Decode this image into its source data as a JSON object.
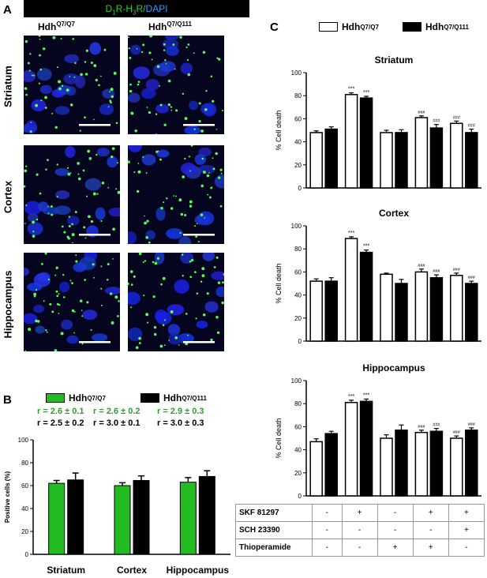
{
  "panelA": {
    "letter": "A",
    "stain_prefix": "D",
    "stain_sub1": "1",
    "stain_mid": "R-H",
    "stain_sub2": "3",
    "stain_suffix": "R/",
    "stain_dapi": "DAPI",
    "col1_base": "Hdh",
    "col1_sup": "Q7/Q7",
    "col2_base": "Hdh",
    "col2_sup": "Q7/Q111",
    "rows": [
      "Striatum",
      "Cortex",
      "Hippocampus"
    ]
  },
  "panelB": {
    "letter": "B",
    "legend": [
      {
        "base": "Hdh",
        "sup": "Q7/Q7",
        "color": "#22bb22"
      },
      {
        "base": "Hdh",
        "sup": "Q7/Q111",
        "color": "#000000"
      }
    ],
    "stats_green": [
      "r = 2.6 ± 0.1",
      "r = 2.6 ± 0.2",
      "r = 2.9 ± 0.3"
    ],
    "stats_black": [
      "r = 2.5 ± 0.2",
      "r = 3.0 ± 0.1",
      "r = 3.0 ± 0.3"
    ],
    "chart_data": {
      "type": "bar",
      "categories": [
        "Striatum",
        "Cortex",
        "Hippocampus"
      ],
      "series": [
        {
          "name": "HdhQ7/Q7",
          "values": [
            62,
            60,
            63
          ],
          "errors": [
            2.5,
            2.5,
            4
          ]
        },
        {
          "name": "HdhQ7/Q111",
          "values": [
            65,
            64.5,
            68
          ],
          "errors": [
            6,
            4,
            5
          ]
        }
      ],
      "ylabel": "Positive cells (%)",
      "ylim": [
        0,
        100
      ],
      "yticks": [
        "0",
        "20",
        "40",
        "60",
        "80",
        "100"
      ]
    }
  },
  "panelC": {
    "letter": "C",
    "legend": [
      {
        "base": "Hdh",
        "sup": "Q7/Q7",
        "color": "#ffffff"
      },
      {
        "base": "Hdh",
        "sup": "Q7/Q111",
        "color": "#000000"
      }
    ],
    "chart_data": [
      {
        "type": "bar",
        "title": "Striatum",
        "ylabel": "% Cell death",
        "ylim": [
          0,
          100
        ],
        "yticks": [
          "0",
          "20",
          "40",
          "60",
          "80",
          "100"
        ],
        "groups": 5,
        "series": [
          {
            "name": "HdhQ7/Q7",
            "values": [
              48,
              81,
              48,
              61,
              56
            ],
            "errors": [
              1.5,
              1.5,
              2,
              1.5,
              2
            ]
          },
          {
            "name": "HdhQ7/Q111",
            "values": [
              51,
              78,
              48,
              52,
              48
            ],
            "errors": [
              2,
              1.5,
              2.5,
              3,
              3
            ]
          }
        ],
        "annotations": [
          [
            "",
            "",
            "***",
            "***",
            "",
            "",
            "###",
            "###",
            "###",
            "###"
          ]
        ]
      },
      {
        "type": "bar",
        "title": "Cortex",
        "ylabel": "% Cell death",
        "ylim": [
          0,
          100
        ],
        "yticks": [
          "0",
          "20",
          "40",
          "60",
          "80",
          "100"
        ],
        "groups": 5,
        "series": [
          {
            "name": "HdhQ7/Q7",
            "values": [
              52,
              89,
              58,
              60,
              57
            ],
            "errors": [
              2,
              1.5,
              1,
              2.5,
              2
            ]
          },
          {
            "name": "HdhQ7/Q111",
            "values": [
              52,
              77,
              50,
              55,
              50
            ],
            "errors": [
              3,
              2,
              3.5,
              2.5,
              2
            ]
          }
        ],
        "annotations": [
          [
            "",
            "",
            "***",
            "***",
            "",
            "",
            "###",
            "###",
            "###",
            "###"
          ]
        ]
      },
      {
        "type": "bar",
        "title": "Hippocampus",
        "ylabel": "% Cell death",
        "ylim": [
          0,
          100
        ],
        "yticks": [
          "0",
          "20",
          "40",
          "60",
          "80",
          "100"
        ],
        "groups": 5,
        "series": [
          {
            "name": "HdhQ7/Q7",
            "values": [
              47,
              81,
              50,
              55,
              50
            ],
            "errors": [
              2.5,
              2,
              3,
              2,
              2
            ]
          },
          {
            "name": "HdhQ7/Q111",
            "values": [
              54,
              82,
              57,
              56,
              57
            ],
            "errors": [
              2,
              2,
              4.5,
              2.5,
              2
            ]
          }
        ],
        "annotations": [
          [
            "",
            "",
            "***",
            "***",
            "",
            "",
            "###",
            "###",
            "###",
            "###"
          ]
        ]
      }
    ],
    "treatments": [
      {
        "label": "SKF 81297",
        "values": [
          "-",
          "+",
          "-",
          "+",
          "+"
        ]
      },
      {
        "label": "SCH 23390",
        "values": [
          "-",
          "-",
          "-",
          "-",
          "+"
        ]
      },
      {
        "label": "Thioperamide",
        "values": [
          "-",
          "-",
          "+",
          "+",
          "-"
        ]
      }
    ]
  }
}
